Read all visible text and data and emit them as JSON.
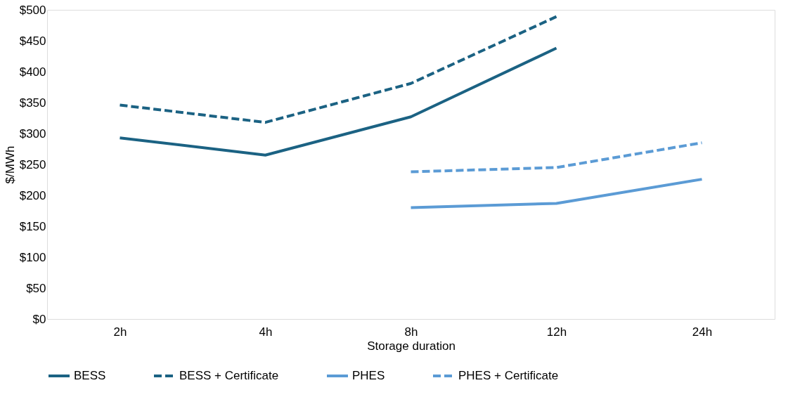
{
  "chart_data": {
    "type": "line",
    "xlabel": "Storage duration",
    "ylabel": "$/MWh",
    "categories": [
      "2h",
      "4h",
      "8h",
      "12h",
      "24h"
    ],
    "series": [
      {
        "name": "BESS",
        "color": "#1b6283",
        "line_style": "solid",
        "values": [
          293,
          265,
          327,
          438,
          null
        ]
      },
      {
        "name": "BESS + Certificate",
        "color": "#1b6283",
        "line_style": "dashed",
        "values": [
          346,
          318,
          381,
          489,
          null
        ]
      },
      {
        "name": "PHES",
        "color": "#5b9bd5",
        "line_style": "solid",
        "values": [
          null,
          null,
          180,
          187,
          226
        ]
      },
      {
        "name": "PHES + Certificate",
        "color": "#5b9bd5",
        "line_style": "dashed",
        "values": [
          null,
          null,
          238,
          245,
          285
        ]
      }
    ],
    "ylim": [
      0,
      500
    ],
    "yticks": [
      {
        "value": 0,
        "label": "$0"
      },
      {
        "value": 50,
        "label": "$50"
      },
      {
        "value": 100,
        "label": "$100"
      },
      {
        "value": 150,
        "label": "$150"
      },
      {
        "value": 200,
        "label": "$200"
      },
      {
        "value": 250,
        "label": "$250"
      },
      {
        "value": 300,
        "label": "$300"
      },
      {
        "value": 350,
        "label": "$350"
      },
      {
        "value": 400,
        "label": "$400"
      },
      {
        "value": 450,
        "label": "$450"
      },
      {
        "value": 500,
        "label": "$500"
      }
    ],
    "grid": false,
    "legend": "bottom",
    "marker": "none"
  }
}
